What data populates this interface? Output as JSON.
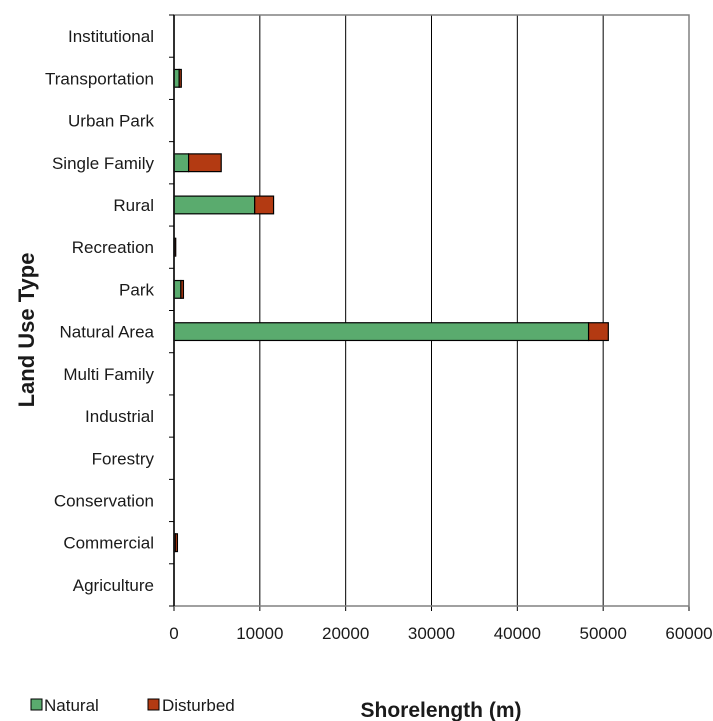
{
  "chart_data": {
    "type": "bar",
    "orientation": "horizontal",
    "stacked": true,
    "title": "",
    "xlabel": "Shorelength (m)",
    "ylabel": "Land Use Type",
    "categories": [
      "Agriculture",
      "Commercial",
      "Conservation",
      "Forestry",
      "Industrial",
      "Multi Family",
      "Natural Area",
      "Park",
      "Recreation",
      "Rural",
      "Single Family",
      "Urban Park",
      "Transportation",
      "Institutional"
    ],
    "series": [
      {
        "name": "Natural",
        "color": "#5aab6e",
        "values": [
          0,
          150,
          0,
          0,
          0,
          0,
          48300,
          800,
          50,
          9400,
          1700,
          0,
          600,
          0
        ]
      },
      {
        "name": "Disturbed",
        "color": "#b33a12",
        "values": [
          0,
          250,
          0,
          0,
          0,
          0,
          2300,
          300,
          150,
          2200,
          3800,
          0,
          250,
          0
        ]
      }
    ],
    "xlim": [
      0,
      60000
    ],
    "xticks": [
      0,
      10000,
      20000,
      30000,
      40000,
      50000,
      60000
    ],
    "grid": "vertical",
    "legend_position": "bottom-left"
  }
}
